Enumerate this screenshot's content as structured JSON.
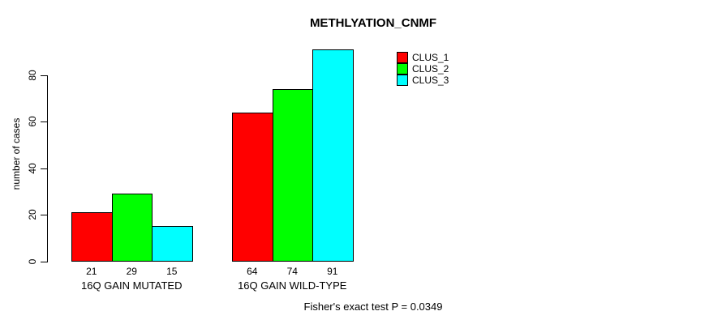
{
  "chart_data": {
    "type": "bar",
    "title": "METHLYATION_CNMF",
    "ylabel": "number of cases",
    "xlabel": "",
    "yticks": [
      0,
      20,
      40,
      60,
      80
    ],
    "ylim": [
      0,
      92
    ],
    "grid": false,
    "legend_position": "top-right",
    "categories": [
      "16Q GAIN MUTATED",
      "16Q GAIN WILD-TYPE"
    ],
    "series": [
      {
        "name": "CLUS_1",
        "color": "#ff0000",
        "values": [
          21,
          64
        ]
      },
      {
        "name": "CLUS_2",
        "color": "#00ff00",
        "values": [
          29,
          74
        ]
      },
      {
        "name": "CLUS_3",
        "color": "#00ffff",
        "values": [
          15,
          91
        ]
      }
    ],
    "bar_value_labels": [
      [
        "21",
        "29",
        "15"
      ],
      [
        "64",
        "74",
        "91"
      ]
    ],
    "footer": "Fisher's exact test P = 0.0349"
  }
}
